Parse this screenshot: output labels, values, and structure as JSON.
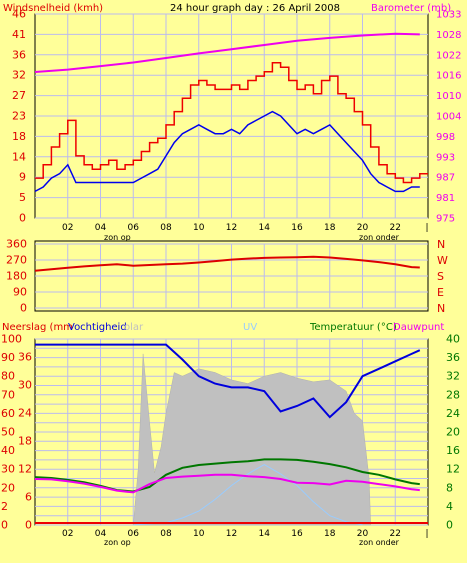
{
  "header": {
    "left_title": "Windsnelheid (kmh)",
    "center_title": "24 hour graph day : 26 April 2008",
    "right_title": "Barometer (mb)"
  },
  "colors": {
    "background": "#ffff99",
    "grid": "#bbbbee",
    "wind_max": "#ee0000",
    "wind_avg": "#0000ee",
    "barometer": "#ee00ee",
    "direction": "#dd0000",
    "humidity": "#0000dd",
    "temperature": "#007700",
    "dewpoint": "#ee00ee",
    "solar": "#c0c0c0",
    "uv": "#99ccff",
    "rain": "#ee0000"
  },
  "chart_data": [
    {
      "type": "line",
      "title": "24 hour graph day : 26 April 2008",
      "ylabel_left": "Windsnelheid (kmh)",
      "ylabel_right": "Barometer (mb)",
      "yticks_left": [
        "0",
        "5",
        "9",
        "14",
        "18",
        "23",
        "27",
        "32",
        "36",
        "41",
        "46"
      ],
      "yticks_right": [
        "975",
        "981",
        "987",
        "993",
        "998",
        "1004",
        "1010",
        "1016",
        "1022",
        "1028",
        "1033"
      ],
      "ylim_left": [
        0,
        46
      ],
      "ylim_right": [
        975,
        1033
      ],
      "xlim": [
        0,
        24
      ],
      "xticks": [
        "02",
        "04",
        "06",
        "08",
        "10",
        "12",
        "14",
        "16",
        "18",
        "20",
        "22"
      ],
      "xlabel_sunrise": "zon op",
      "xlabel_sunset": "zon onder",
      "grid": true,
      "series": [
        {
          "key": "wind_max",
          "x": [
            0,
            0.5,
            1,
            1.5,
            2,
            2.5,
            3,
            3.5,
            4,
            4.5,
            5,
            5.5,
            6,
            6.5,
            7,
            7.5,
            8,
            8.5,
            9,
            9.5,
            10,
            10.5,
            11,
            11.5,
            12,
            12.5,
            13,
            13.5,
            14,
            14.5,
            15,
            15.5,
            16,
            16.5,
            17,
            17.5,
            18,
            18.5,
            19,
            19.5,
            20,
            20.5,
            21,
            21.5,
            22,
            22.5,
            23,
            23.5
          ],
          "values": [
            9,
            12,
            16,
            19,
            22,
            14,
            12,
            11,
            12,
            13,
            11,
            12,
            13,
            15,
            17,
            18,
            21,
            24,
            27,
            30,
            31,
            30,
            29,
            29,
            30,
            29,
            31,
            32,
            33,
            35,
            34,
            31,
            29,
            30,
            28,
            31,
            32,
            28,
            27,
            24,
            21,
            16,
            12,
            10,
            9,
            8,
            9,
            10
          ]
        },
        {
          "key": "wind_avg",
          "x": [
            0,
            0.5,
            1,
            1.5,
            2,
            2.5,
            3,
            3.5,
            4,
            4.5,
            5,
            5.5,
            6,
            6.5,
            7,
            7.5,
            8,
            8.5,
            9,
            9.5,
            10,
            10.5,
            11,
            11.5,
            12,
            12.5,
            13,
            13.5,
            14,
            14.5,
            15,
            15.5,
            16,
            16.5,
            17,
            17.5,
            18,
            18.5,
            19,
            19.5,
            20,
            20.5,
            21,
            21.5,
            22,
            22.5,
            23,
            23.5
          ],
          "values": [
            6,
            7,
            9,
            10,
            12,
            8,
            8,
            8,
            8,
            8,
            8,
            8,
            8,
            9,
            10,
            11,
            14,
            17,
            19,
            20,
            21,
            20,
            19,
            19,
            20,
            19,
            21,
            22,
            23,
            24,
            23,
            21,
            19,
            20,
            19,
            20,
            21,
            19,
            17,
            15,
            13,
            10,
            8,
            7,
            6,
            6,
            7,
            7
          ]
        },
        {
          "key": "barometer",
          "x": [
            0,
            2,
            4,
            6,
            8,
            10,
            12,
            14,
            16,
            18,
            20,
            22,
            23.5
          ],
          "values": [
            1016.5,
            1017.2,
            1018.2,
            1019.2,
            1020.5,
            1021.8,
            1023,
            1024.2,
            1025.4,
            1026.2,
            1026.9,
            1027.4,
            1027.2
          ]
        }
      ]
    },
    {
      "type": "line",
      "ylabel_right_letters": [
        "N",
        "W",
        "S",
        "E",
        "N"
      ],
      "yticks_left": [
        "0",
        "90",
        "180",
        "270",
        "360"
      ],
      "ylim": [
        0,
        360
      ],
      "xlim": [
        0,
        24
      ],
      "grid": true,
      "series": [
        {
          "key": "direction",
          "x": [
            0,
            1,
            2,
            3,
            4,
            5,
            6,
            7,
            8,
            9,
            10,
            11,
            12,
            13,
            14,
            15,
            16,
            17,
            18,
            19,
            20,
            21,
            22,
            23,
            23.5
          ],
          "values": [
            210,
            218,
            226,
            234,
            240,
            246,
            238,
            242,
            246,
            250,
            256,
            264,
            272,
            278,
            282,
            284,
            286,
            288,
            284,
            276,
            268,
            258,
            246,
            230,
            228
          ]
        }
      ]
    },
    {
      "type": "area",
      "legend": [
        "Neerslag (mm",
        "Vochtigheid",
        "olar",
        "UV",
        "Temperatuur (°C)",
        "Dauwpunt"
      ],
      "yticks_left": [
        "0",
        "2",
        "20",
        "30",
        "40",
        "50",
        "60",
        "70",
        "80",
        "90",
        "100"
      ],
      "yticks_left_small": [
        "0",
        "6",
        "12",
        "18",
        "24",
        "30",
        "36"
      ],
      "yticks_right": [
        "0",
        "2",
        "4",
        "6",
        "8",
        "10",
        "12",
        "14",
        "16",
        "18",
        "20",
        "22",
        "24",
        "26",
        "28",
        "30",
        "32",
        "34",
        "36",
        "38",
        "40"
      ],
      "xlim": [
        0,
        24
      ],
      "xticks": [
        "02",
        "04",
        "06",
        "08",
        "10",
        "12",
        "14",
        "16",
        "18",
        "20",
        "22"
      ],
      "xlabel_sunrise": "zon op",
      "xlabel_sunset": "zon onder",
      "grid": true,
      "series": [
        {
          "key": "humidity",
          "ylim": [
            0,
            100
          ],
          "x": [
            0,
            1,
            2,
            3,
            4,
            5,
            6,
            7,
            8,
            9,
            10,
            11,
            12,
            13,
            14,
            15,
            16,
            17,
            18,
            19,
            20,
            21,
            22,
            23,
            23.5
          ],
          "values": [
            97,
            97,
            97,
            97,
            97,
            97,
            97,
            97,
            97,
            89,
            80,
            76,
            74,
            74,
            72,
            61,
            64,
            68,
            58,
            66,
            80,
            84,
            88,
            92,
            94
          ]
        },
        {
          "key": "temperature",
          "ylim": [
            0,
            40
          ],
          "x": [
            0,
            1,
            2,
            3,
            4,
            5,
            6,
            7,
            8,
            9,
            10,
            11,
            12,
            13,
            14,
            15,
            16,
            17,
            18,
            19,
            20,
            21,
            22,
            23,
            23.5
          ],
          "values": [
            10.3,
            10.1,
            9.7,
            9.2,
            8.4,
            7.5,
            7.2,
            8.2,
            10.8,
            12.3,
            12.9,
            13.2,
            13.5,
            13.7,
            14.1,
            14.1,
            14,
            13.6,
            13.1,
            12.4,
            11.4,
            10.8,
            9.8,
            9,
            8.8
          ]
        },
        {
          "key": "dewpoint",
          "ylim": [
            0,
            40
          ],
          "x": [
            0,
            1,
            2,
            3,
            4,
            5,
            6,
            7,
            8,
            9,
            10,
            11,
            12,
            13,
            14,
            15,
            16,
            17,
            18,
            19,
            20,
            21,
            22,
            23,
            23.5
          ],
          "values": [
            9.9,
            9.8,
            9.4,
            8.9,
            8.2,
            7.4,
            7,
            8.8,
            10.1,
            10.4,
            10.6,
            10.8,
            10.8,
            10.5,
            10.3,
            9.9,
            9.1,
            9,
            8.7,
            9.5,
            9.3,
            8.8,
            8.3,
            7.7,
            7.5
          ]
        },
        {
          "key": "solar",
          "ylim": [
            0,
            100
          ],
          "x": [
            6,
            6.3,
            6.6,
            7,
            7.3,
            7.7,
            8,
            8.5,
            9,
            10,
            11,
            12,
            13,
            14,
            15,
            16,
            17,
            18,
            19,
            19.5,
            20,
            20.4,
            20.5
          ],
          "values": [
            0,
            30,
            92,
            55,
            28,
            42,
            60,
            82,
            80,
            84,
            82,
            78,
            76,
            80,
            82,
            79,
            77,
            78,
            72,
            60,
            56,
            25,
            0
          ]
        },
        {
          "key": "uv",
          "ylim": [
            0,
            40
          ],
          "x": [
            6,
            8,
            9,
            10,
            11,
            12,
            13,
            14,
            15,
            16,
            17,
            18,
            19,
            20
          ],
          "values": [
            0,
            0.5,
            1.5,
            3,
            5.5,
            8.5,
            11,
            13,
            11,
            8.5,
            5,
            2,
            0.7,
            0
          ]
        },
        {
          "key": "rain",
          "ylim": [
            0,
            2
          ],
          "x": [
            0,
            24
          ],
          "values": [
            0,
            0
          ]
        }
      ]
    }
  ]
}
